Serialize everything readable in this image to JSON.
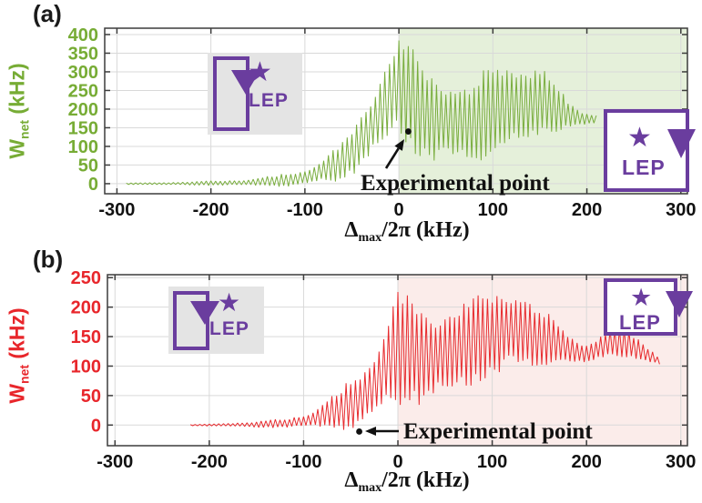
{
  "figure": {
    "panel_a_label": "(a)",
    "panel_b_label": "(b)",
    "ylabel_main": "W",
    "ylabel_sub": "net",
    "ylabel_unit": " (kHz)",
    "xlabel_delta": "Δ",
    "xlabel_sub": "max",
    "xlabel_rest": "/2π (kHz)",
    "lep_label": "LEP",
    "colors": {
      "panel_a_accent": "#77ac35",
      "panel_b_accent": "#e8262b",
      "purple": "#6a3d9e",
      "inset_gray_bg": "#e4e4e4",
      "grid": "#d9d9d9",
      "frame": "#3c3c3c"
    }
  },
  "icons": {
    "star_glyph": "★",
    "loop_arrow": "rectangular-loop-with-down-arrow"
  },
  "chart_data": [
    {
      "type": "line",
      "panel": "a",
      "xlabel": "Δmax/2π (kHz)",
      "ylabel": "Wnet (kHz)",
      "x_ticks": [
        -300,
        -200,
        -100,
        0,
        100,
        200,
        300
      ],
      "y_ticks": [
        0,
        50,
        100,
        150,
        200,
        250,
        300,
        350,
        400
      ],
      "xlim": [
        -313,
        307
      ],
      "ylim": [
        -27,
        417
      ],
      "grid": true,
      "curve_color": "#79ad3e",
      "tick_color": "#77ac35",
      "shaded_region": {
        "from": 0,
        "to": 307,
        "color": "#e5f0da"
      },
      "oscillation_period_khz": 5,
      "envelope": [
        [
          -290,
          -2,
          2
        ],
        [
          -270,
          -3,
          3
        ],
        [
          -250,
          -4,
          4
        ],
        [
          -230,
          -4,
          5
        ],
        [
          -210,
          -5,
          7
        ],
        [
          -190,
          -6,
          9
        ],
        [
          -170,
          -7,
          12
        ],
        [
          -150,
          -8,
          16
        ],
        [
          -130,
          -9,
          24
        ],
        [
          -115,
          -10,
          32
        ],
        [
          -100,
          -8,
          45
        ],
        [
          -90,
          -5,
          58
        ],
        [
          -80,
          -2,
          74
        ],
        [
          -70,
          2,
          95
        ],
        [
          -60,
          8,
          120
        ],
        [
          -50,
          18,
          155
        ],
        [
          -40,
          32,
          200
        ],
        [
          -30,
          48,
          250
        ],
        [
          -20,
          72,
          310
        ],
        [
          -12,
          95,
          365
        ],
        [
          -6,
          115,
          395
        ],
        [
          0,
          125,
          410
        ],
        [
          6,
          105,
          400
        ],
        [
          12,
          80,
          385
        ],
        [
          18,
          60,
          360
        ],
        [
          25,
          48,
          330
        ],
        [
          35,
          38,
          305
        ],
        [
          45,
          34,
          290
        ],
        [
          55,
          42,
          280
        ],
        [
          65,
          52,
          272
        ],
        [
          75,
          58,
          282
        ],
        [
          85,
          55,
          300
        ],
        [
          95,
          55,
          322
        ],
        [
          105,
          62,
          338
        ],
        [
          115,
          70,
          348
        ],
        [
          125,
          80,
          350
        ],
        [
          135,
          90,
          342
        ],
        [
          145,
          102,
          328
        ],
        [
          155,
          118,
          308
        ],
        [
          165,
          130,
          278
        ],
        [
          175,
          140,
          245
        ],
        [
          185,
          148,
          215
        ],
        [
          195,
          150,
          200
        ],
        [
          202,
          152,
          192
        ],
        [
          210,
          156,
          190
        ]
      ],
      "experimental_point": {
        "x": 10,
        "y": 140
      },
      "annotation": "Experimental point"
    },
    {
      "type": "line",
      "panel": "b",
      "xlabel": "Δmax/2π (kHz)",
      "ylabel": "Wnet (kHz)",
      "x_ticks": [
        -300,
        -200,
        -100,
        0,
        100,
        200,
        300
      ],
      "y_ticks": [
        0,
        50,
        100,
        150,
        200,
        250
      ],
      "xlim": [
        -308,
        307
      ],
      "ylim": [
        -35,
        255
      ],
      "grid": true,
      "curve_color": "#e72b2e",
      "tick_color": "#e8262b",
      "shaded_region": {
        "from": 0,
        "to": 307,
        "color": "#fbecea"
      },
      "oscillation_period_khz": 5,
      "envelope": [
        [
          -220,
          -1,
          1
        ],
        [
          -200,
          -2,
          2
        ],
        [
          -180,
          -3,
          4
        ],
        [
          -160,
          -4,
          5
        ],
        [
          -140,
          -5,
          8
        ],
        [
          -120,
          -6,
          12
        ],
        [
          -105,
          -7,
          18
        ],
        [
          -90,
          -8,
          28
        ],
        [
          -80,
          -9,
          38
        ],
        [
          -70,
          -10,
          50
        ],
        [
          -60,
          -11,
          65
        ],
        [
          -50,
          -12,
          82
        ],
        [
          -40,
          -10,
          102
        ],
        [
          -30,
          -4,
          128
        ],
        [
          -20,
          6,
          158
        ],
        [
          -10,
          16,
          198
        ],
        [
          -4,
          24,
          225
        ],
        [
          0,
          28,
          238
        ],
        [
          6,
          32,
          240
        ],
        [
          12,
          32,
          232
        ],
        [
          20,
          28,
          220
        ],
        [
          30,
          24,
          206
        ],
        [
          40,
          28,
          202
        ],
        [
          50,
          36,
          210
        ],
        [
          60,
          46,
          216
        ],
        [
          70,
          55,
          221
        ],
        [
          80,
          62,
          226
        ],
        [
          90,
          66,
          227
        ],
        [
          100,
          71,
          231
        ],
        [
          110,
          76,
          233
        ],
        [
          120,
          82,
          235
        ],
        [
          130,
          86,
          230
        ],
        [
          140,
          91,
          220
        ],
        [
          150,
          96,
          206
        ],
        [
          160,
          100,
          191
        ],
        [
          170,
          102,
          176
        ],
        [
          180,
          100,
          161
        ],
        [
          190,
          98,
          149
        ],
        [
          200,
          101,
          143
        ],
        [
          210,
          106,
          151
        ],
        [
          220,
          111,
          159
        ],
        [
          230,
          113,
          166
        ],
        [
          240,
          113,
          168
        ],
        [
          250,
          109,
          156
        ],
        [
          260,
          104,
          143
        ],
        [
          270,
          101,
          129
        ],
        [
          278,
          100,
          114
        ]
      ],
      "experimental_point": {
        "x": -41,
        "y": -11
      },
      "annotation": "Experimental point"
    }
  ]
}
